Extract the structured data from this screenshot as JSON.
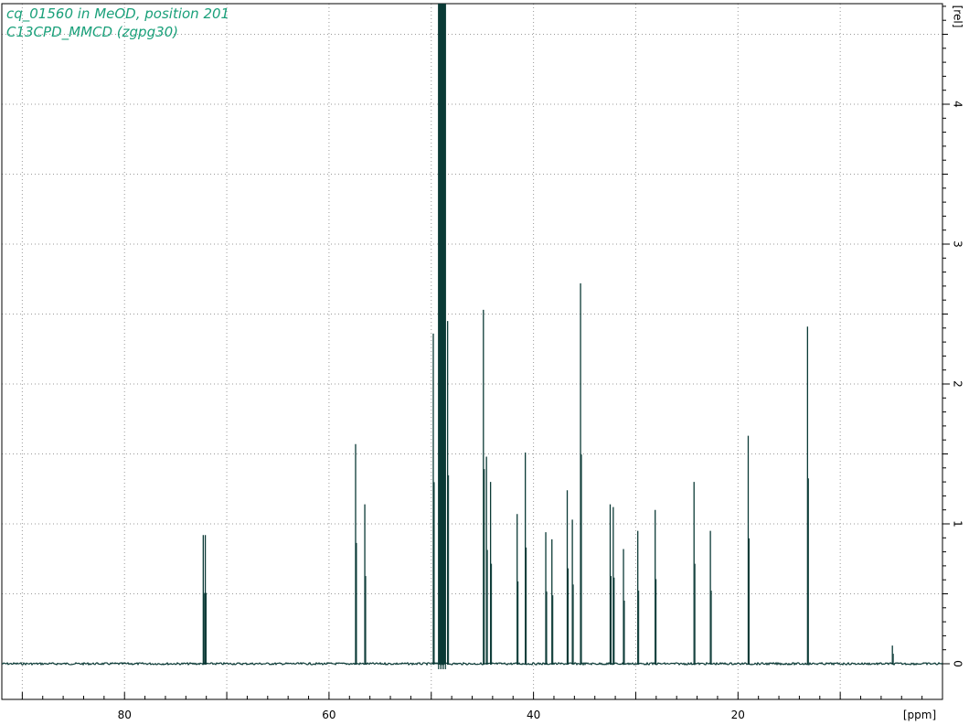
{
  "header": {
    "title": "cq_01560 in MeOD, position 201",
    "subtitle": "C13CPD_MMCD (zgpg30)"
  },
  "chart_data": {
    "type": "line",
    "title": "cq_01560 in MeOD, position 201",
    "subtitle": "C13CPD_MMCD (zgpg30)",
    "xlabel": "[ppm]",
    "ylabel": "[rel]",
    "x_reversed": true,
    "xlim": [
      92.0,
      0.0
    ],
    "ylim": [
      -0.1,
      4.75
    ],
    "x_ticks": [
      80,
      60,
      40,
      20
    ],
    "x_tick_labels": [
      "80",
      "60",
      "40",
      "20"
    ],
    "y_ticks": [
      0,
      1,
      2,
      3,
      4
    ],
    "y_tick_labels": [
      "0",
      "1",
      "2",
      "3",
      "4"
    ],
    "grid": true,
    "colors": {
      "spectrum": "#0b3a36",
      "title": "#1aa07a",
      "grid": "#999999"
    },
    "solvent_peak": {
      "x_from": 48.6,
      "x_to": 49.3,
      "y": 4.75
    },
    "peaks": [
      {
        "x": 72.3,
        "y": 0.92
      },
      {
        "x": 72.1,
        "y": 0.92
      },
      {
        "x": 57.4,
        "y": 1.57
      },
      {
        "x": 56.5,
        "y": 1.14
      },
      {
        "x": 49.8,
        "y": 2.36
      },
      {
        "x": 48.4,
        "y": 2.45
      },
      {
        "x": 44.9,
        "y": 2.53
      },
      {
        "x": 44.6,
        "y": 1.48
      },
      {
        "x": 44.2,
        "y": 1.3
      },
      {
        "x": 41.6,
        "y": 1.07
      },
      {
        "x": 40.8,
        "y": 1.51
      },
      {
        "x": 38.8,
        "y": 0.94
      },
      {
        "x": 38.2,
        "y": 0.89
      },
      {
        "x": 36.7,
        "y": 1.24
      },
      {
        "x": 36.2,
        "y": 1.03
      },
      {
        "x": 35.4,
        "y": 2.72
      },
      {
        "x": 32.5,
        "y": 1.14
      },
      {
        "x": 32.2,
        "y": 1.12
      },
      {
        "x": 31.2,
        "y": 0.82
      },
      {
        "x": 29.8,
        "y": 0.95
      },
      {
        "x": 28.1,
        "y": 1.1
      },
      {
        "x": 24.3,
        "y": 1.3
      },
      {
        "x": 22.7,
        "y": 0.95
      },
      {
        "x": 19.0,
        "y": 1.63
      },
      {
        "x": 13.2,
        "y": 2.41
      },
      {
        "x": 4.9,
        "y": 0.13
      }
    ]
  }
}
